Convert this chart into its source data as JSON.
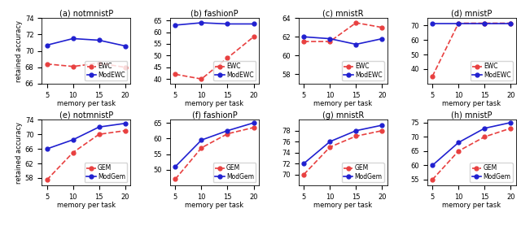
{
  "x": [
    5,
    10,
    15,
    20
  ],
  "titles": [
    "(a) notmnistP",
    "(b) fashionP",
    "(c) mnistR",
    "(d) mnistP",
    "(e) notmnistP",
    "(f) fashionP",
    "(g) mnistR",
    "(h) mnistP"
  ],
  "row1": {
    "base_label": "EWC",
    "mod_label": "ModEWC",
    "data": [
      {
        "base": [
          68.4,
          68.1,
          68.5,
          68.0
        ],
        "mod": [
          70.7,
          71.5,
          71.3,
          70.6
        ],
        "ylim": [
          66,
          74
        ],
        "yticks": [
          66,
          68,
          70,
          72,
          74
        ]
      },
      {
        "base": [
          42.0,
          40.0,
          49.0,
          58.0
        ],
        "mod": [
          63.0,
          64.0,
          63.5,
          63.5
        ],
        "ylim": [
          38,
          66
        ],
        "yticks": [
          40,
          45,
          50,
          55,
          60,
          65
        ]
      },
      {
        "base": [
          61.5,
          61.5,
          63.5,
          63.0
        ],
        "mod": [
          62.0,
          61.8,
          61.2,
          61.8
        ],
        "ylim": [
          57,
          64
        ],
        "yticks": [
          58,
          60,
          62,
          64
        ]
      },
      {
        "base": [
          35.0,
          71.5,
          71.5,
          71.5
        ],
        "mod": [
          71.5,
          71.5,
          71.5,
          71.5
        ],
        "ylim": [
          30,
          75
        ],
        "yticks": [
          40,
          50,
          60,
          70
        ]
      }
    ]
  },
  "row2": {
    "base_label": "GEM",
    "mod_label": "ModGem",
    "data": [
      {
        "base": [
          57.5,
          65.0,
          70.0,
          71.0
        ],
        "mod": [
          66.0,
          68.5,
          72.0,
          73.0
        ],
        "ylim": [
          56,
          74
        ],
        "yticks": [
          58,
          62,
          66,
          70,
          74
        ]
      },
      {
        "base": [
          47.0,
          57.0,
          61.5,
          63.5
        ],
        "mod": [
          51.0,
          59.5,
          62.5,
          65.0
        ],
        "ylim": [
          45,
          66
        ],
        "yticks": [
          50,
          55,
          60,
          65
        ]
      },
      {
        "base": [
          70.0,
          75.0,
          77.0,
          78.0
        ],
        "mod": [
          72.0,
          76.0,
          78.0,
          79.0
        ],
        "ylim": [
          68,
          80
        ],
        "yticks": [
          70,
          72,
          74,
          76,
          78
        ]
      },
      {
        "base": [
          55.0,
          65.0,
          70.0,
          73.0
        ],
        "mod": [
          60.0,
          68.0,
          73.0,
          75.0
        ],
        "ylim": [
          53,
          76
        ],
        "yticks": [
          55,
          60,
          65,
          70,
          75
        ]
      }
    ]
  },
  "base_color": "#e84040",
  "mod_color": "#2020d0",
  "xlabel": "memory per task",
  "ylabel": "retained accuracy"
}
